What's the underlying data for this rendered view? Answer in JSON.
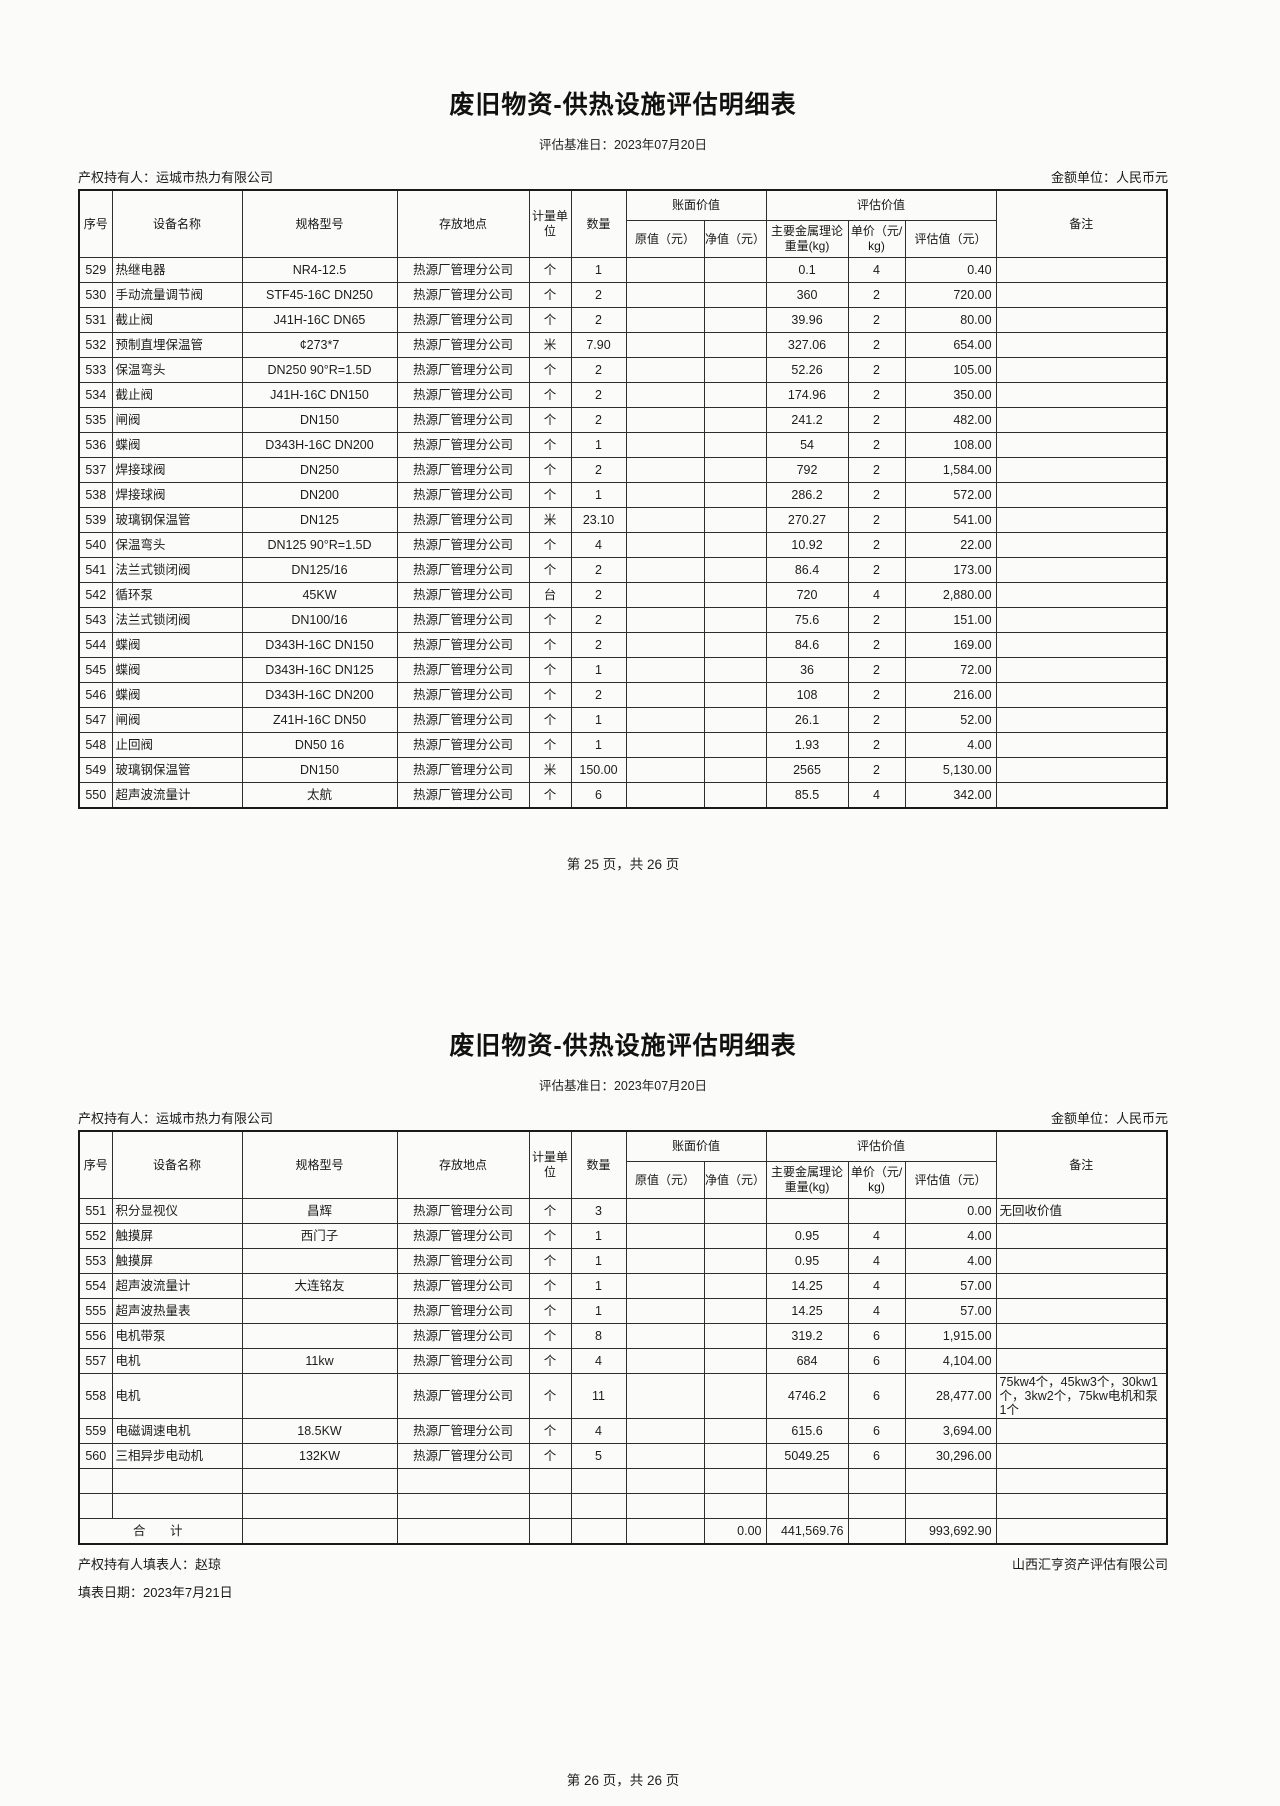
{
  "columns": {
    "serial": "序号",
    "name": "设备名称",
    "spec": "规格型号",
    "location": "存放地点",
    "unit": "计量单位",
    "qty": "数量",
    "book_group": "账面价值",
    "orig_value": "原值（元）",
    "net_value": "净值（元）",
    "assess_group": "评估价值",
    "weight": "主要金属理论重量(kg)",
    "unit_price": "单价（元/kg)",
    "assess_value": "评估值（元）",
    "remark": "备注"
  },
  "page1": {
    "title": "废旧物资-供热设施评估明细表",
    "subtitle": "评估基准日：2023年07月20日",
    "owner": "产权持有人：运城市热力有限公司",
    "currency_unit": "金额单位：人民币元",
    "rows": [
      [
        "529",
        "热继电器",
        "NR4-12.5",
        "热源厂管理分公司",
        "个",
        "1",
        "",
        "",
        "0.1",
        "4",
        "0.40",
        ""
      ],
      [
        "530",
        "手动流量调节阀",
        "STF45-16C  DN250",
        "热源厂管理分公司",
        "个",
        "2",
        "",
        "",
        "360",
        "2",
        "720.00",
        ""
      ],
      [
        "531",
        "截止阀",
        "J41H-16C DN65",
        "热源厂管理分公司",
        "个",
        "2",
        "",
        "",
        "39.96",
        "2",
        "80.00",
        ""
      ],
      [
        "532",
        "预制直埋保温管",
        "¢273*7",
        "热源厂管理分公司",
        "米",
        "7.90",
        "",
        "",
        "327.06",
        "2",
        "654.00",
        ""
      ],
      [
        "533",
        "保温弯头",
        "DN250 90°R=1.5D",
        "热源厂管理分公司",
        "个",
        "2",
        "",
        "",
        "52.26",
        "2",
        "105.00",
        ""
      ],
      [
        "534",
        "截止阀",
        "J41H-16C DN150",
        "热源厂管理分公司",
        "个",
        "2",
        "",
        "",
        "174.96",
        "2",
        "350.00",
        ""
      ],
      [
        "535",
        "闸阀",
        "DN150",
        "热源厂管理分公司",
        "个",
        "2",
        "",
        "",
        "241.2",
        "2",
        "482.00",
        ""
      ],
      [
        "536",
        "蝶阀",
        "D343H-16C  DN200",
        "热源厂管理分公司",
        "个",
        "1",
        "",
        "",
        "54",
        "2",
        "108.00",
        ""
      ],
      [
        "537",
        "焊接球阀",
        "DN250",
        "热源厂管理分公司",
        "个",
        "2",
        "",
        "",
        "792",
        "2",
        "1,584.00",
        ""
      ],
      [
        "538",
        "焊接球阀",
        "DN200",
        "热源厂管理分公司",
        "个",
        "1",
        "",
        "",
        "286.2",
        "2",
        "572.00",
        ""
      ],
      [
        "539",
        "玻璃钢保温管",
        "DN125",
        "热源厂管理分公司",
        "米",
        "23.10",
        "",
        "",
        "270.27",
        "2",
        "541.00",
        ""
      ],
      [
        "540",
        "保温弯头",
        "DN125 90°R=1.5D",
        "热源厂管理分公司",
        "个",
        "4",
        "",
        "",
        "10.92",
        "2",
        "22.00",
        ""
      ],
      [
        "541",
        "法兰式锁闭阀",
        "DN125/16",
        "热源厂管理分公司",
        "个",
        "2",
        "",
        "",
        "86.4",
        "2",
        "173.00",
        ""
      ],
      [
        "542",
        "循环泵",
        "45KW",
        "热源厂管理分公司",
        "台",
        "2",
        "",
        "",
        "720",
        "4",
        "2,880.00",
        ""
      ],
      [
        "543",
        "法兰式锁闭阀",
        "DN100/16",
        "热源厂管理分公司",
        "个",
        "2",
        "",
        "",
        "75.6",
        "2",
        "151.00",
        ""
      ],
      [
        "544",
        "蝶阀",
        "D343H-16C  DN150",
        "热源厂管理分公司",
        "个",
        "2",
        "",
        "",
        "84.6",
        "2",
        "169.00",
        ""
      ],
      [
        "545",
        "蝶阀",
        "D343H-16C DN125",
        "热源厂管理分公司",
        "个",
        "1",
        "",
        "",
        "36",
        "2",
        "72.00",
        ""
      ],
      [
        "546",
        "蝶阀",
        "D343H-16C  DN200",
        "热源厂管理分公司",
        "个",
        "2",
        "",
        "",
        "108",
        "2",
        "216.00",
        ""
      ],
      [
        "547",
        "闸阀",
        "Z41H-16C  DN50",
        "热源厂管理分公司",
        "个",
        "1",
        "",
        "",
        "26.1",
        "2",
        "52.00",
        ""
      ],
      [
        "548",
        "止回阀",
        "DN50 16",
        "热源厂管理分公司",
        "个",
        "1",
        "",
        "",
        "1.93",
        "2",
        "4.00",
        ""
      ],
      [
        "549",
        "玻璃钢保温管",
        "DN150",
        "热源厂管理分公司",
        "米",
        "150.00",
        "",
        "",
        "2565",
        "2",
        "5,130.00",
        ""
      ],
      [
        "550",
        "超声波流量计",
        "太航",
        "热源厂管理分公司",
        "个",
        "6",
        "",
        "",
        "85.5",
        "4",
        "342.00",
        ""
      ]
    ],
    "page_footer": "第 25 页，共 26 页"
  },
  "page2": {
    "title": "废旧物资-供热设施评估明细表",
    "subtitle": "评估基准日：2023年07月20日",
    "owner": "产权持有人：运城市热力有限公司",
    "currency_unit": "金额单位：人民币元",
    "rows": [
      [
        "551",
        "积分显视仪",
        "昌辉",
        "热源厂管理分公司",
        "个",
        "3",
        "",
        "",
        "",
        "",
        "0.00",
        "无回收价值"
      ],
      [
        "552",
        "触摸屏",
        "西门子",
        "热源厂管理分公司",
        "个",
        "1",
        "",
        "",
        "0.95",
        "4",
        "4.00",
        ""
      ],
      [
        "553",
        "触摸屏",
        "",
        "热源厂管理分公司",
        "个",
        "1",
        "",
        "",
        "0.95",
        "4",
        "4.00",
        ""
      ],
      [
        "554",
        "超声波流量计",
        "大连铭友",
        "热源厂管理分公司",
        "个",
        "1",
        "",
        "",
        "14.25",
        "4",
        "57.00",
        ""
      ],
      [
        "555",
        "超声波热量表",
        "",
        "热源厂管理分公司",
        "个",
        "1",
        "",
        "",
        "14.25",
        "4",
        "57.00",
        ""
      ],
      [
        "556",
        "电机带泵",
        "",
        "热源厂管理分公司",
        "个",
        "8",
        "",
        "",
        "319.2",
        "6",
        "1,915.00",
        ""
      ],
      [
        "557",
        "电机",
        "11kw",
        "热源厂管理分公司",
        "个",
        "4",
        "",
        "",
        "684",
        "6",
        "4,104.00",
        ""
      ],
      [
        "558",
        "电机",
        "",
        "热源厂管理分公司",
        "个",
        "11",
        "",
        "",
        "4746.2",
        "6",
        "28,477.00",
        "75kw4个，45kw3个，30kw1个，3kw2个，75kw电机和泵1个"
      ],
      [
        "559",
        "电磁调速电机",
        "18.5KW",
        "热源厂管理分公司",
        "个",
        "4",
        "",
        "",
        "615.6",
        "6",
        "3,694.00",
        ""
      ],
      [
        "560",
        "三相异步电动机",
        "132KW",
        "热源厂管理分公司",
        "个",
        "5",
        "",
        "",
        "5049.25",
        "6",
        "30,296.00",
        ""
      ]
    ],
    "empty_row_count": 2,
    "total_row": {
      "label": "合　计",
      "net_value": "0.00",
      "weight": "441,569.76",
      "assess_value": "993,692.90"
    },
    "preparer": "产权持有人填表人：赵琼",
    "fill_date": "填表日期：2023年7月21日",
    "appraiser": "山西汇亨资产评估有限公司",
    "page_footer": "第 26 页，共 26 页"
  }
}
